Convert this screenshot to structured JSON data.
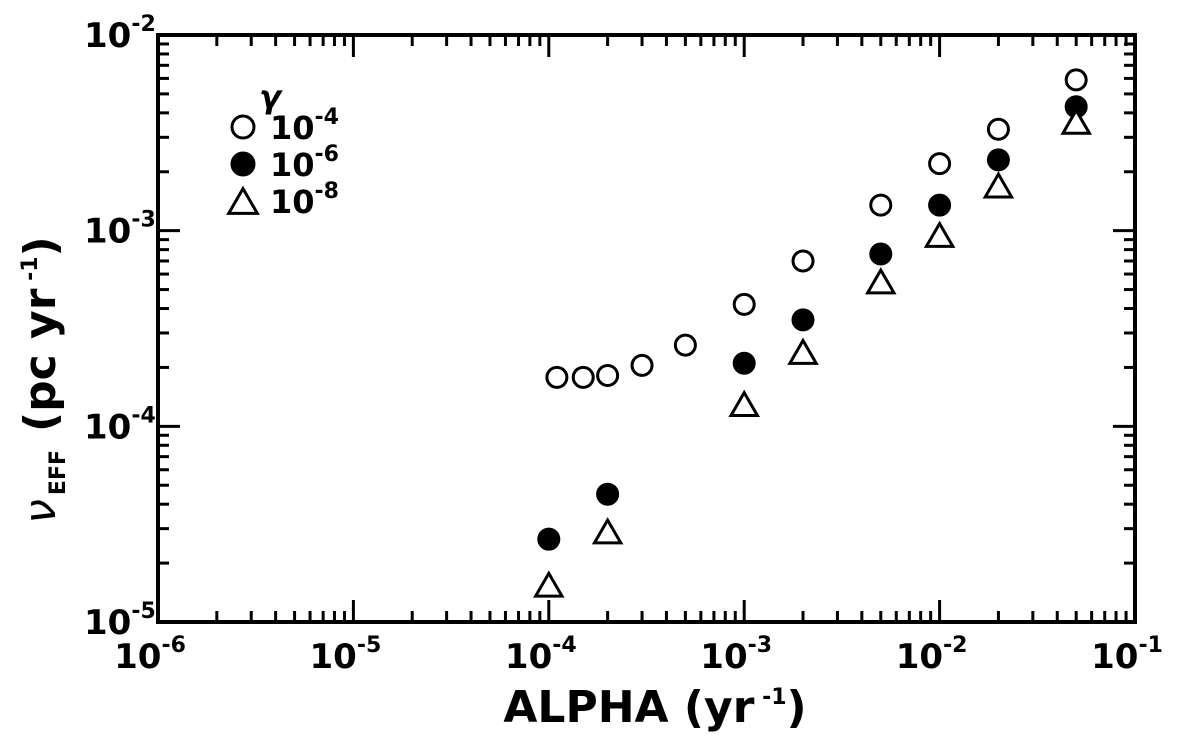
{
  "chart_data": {
    "type": "scatter",
    "title": "",
    "xlabel": "ALPHA (yr−1)",
    "xlabel_main": "ALPHA (yr",
    "xlabel_sup": " -1",
    "xlabel_close": ")",
    "ylabel": "ν EFF (pc yr −1)",
    "ylabel_symbol": "ν",
    "ylabel_sub": "EFF",
    "ylabel_main": "(pc yr",
    "ylabel_sup": " -1",
    "ylabel_close": ")",
    "xscale": "log",
    "yscale": "log",
    "xlim": [
      1e-06,
      0.1
    ],
    "ylim": [
      1e-05,
      0.01
    ],
    "grid": false,
    "legend_position": "top-left",
    "legend_title": "γ",
    "x_ticks": [
      {
        "value": 1e-06,
        "base": "10",
        "exp": "-6"
      },
      {
        "value": 1e-05,
        "base": "10",
        "exp": "-5"
      },
      {
        "value": 0.0001,
        "base": "10",
        "exp": "-4"
      },
      {
        "value": 0.001,
        "base": "10",
        "exp": "-3"
      },
      {
        "value": 0.01,
        "base": "10",
        "exp": "-2"
      },
      {
        "value": 0.1,
        "base": "10",
        "exp": "-1"
      }
    ],
    "y_ticks": [
      {
        "value": 1e-05,
        "base": "10",
        "exp": "-5"
      },
      {
        "value": 0.0001,
        "base": "10",
        "exp": "-4"
      },
      {
        "value": 0.001,
        "base": "10",
        "exp": "-3"
      },
      {
        "value": 0.01,
        "base": "10",
        "exp": "-2"
      }
    ],
    "series": [
      {
        "name": "10-4",
        "legend_base": "10",
        "legend_exp": "-4",
        "marker": "open-circle",
        "x": [
          0.00011,
          0.00015,
          0.0002,
          0.0003,
          0.0005,
          0.001,
          0.002,
          0.005,
          0.01,
          0.02,
          0.05
        ],
        "y": [
          0.000178,
          0.000178,
          0.000182,
          0.000205,
          0.00026,
          0.00042,
          0.0007,
          0.00135,
          0.0022,
          0.0033,
          0.0059
        ]
      },
      {
        "name": "10-6",
        "legend_base": "10",
        "legend_exp": "-6",
        "marker": "filled-circle",
        "x": [
          0.0001,
          0.0002,
          0.001,
          0.002,
          0.005,
          0.01,
          0.02,
          0.05
        ],
        "y": [
          2.65e-05,
          4.5e-05,
          0.00021,
          0.00035,
          0.00076,
          0.00135,
          0.0023,
          0.0043
        ]
      },
      {
        "name": "10-8",
        "legend_base": "10",
        "legend_exp": "-8",
        "marker": "open-triangle",
        "x": [
          0.0001,
          0.0002,
          0.001,
          0.002,
          0.005,
          0.01,
          0.02,
          0.05
        ],
        "y": [
          1.55e-05,
          2.9e-05,
          0.00013,
          0.00024,
          0.00055,
          0.00095,
          0.0017,
          0.0036
        ]
      }
    ]
  }
}
